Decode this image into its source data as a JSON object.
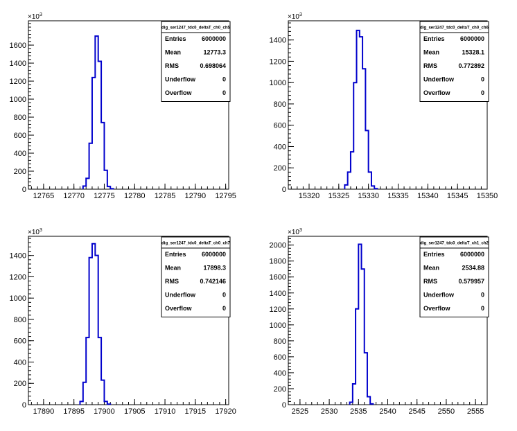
{
  "chart_data": [
    {
      "type": "histogram",
      "title": "dig_ser1247_tdc0_deltaT_ch0_ch5",
      "y_multiplier": "×10",
      "y_exponent": "3",
      "xlim": [
        12762.5,
        12795.5
      ],
      "ylim": [
        0,
        1870
      ],
      "x_ticks": [
        12765,
        12770,
        12775,
        12780,
        12785,
        12790,
        12795
      ],
      "x_tick_labels": [
        "12765",
        "12770",
        "12775",
        "12780",
        "12785",
        "12790",
        "12795"
      ],
      "x_minor_step": 1,
      "y_ticks": [
        0,
        200,
        400,
        600,
        800,
        1000,
        1200,
        1400,
        1600
      ],
      "y_tick_labels": [
        "0",
        "200",
        "400",
        "600",
        "800",
        "1000",
        "1200",
        "1400",
        "1600"
      ],
      "y_minor_step": 40,
      "bin_width": 0.5,
      "bins_start": 12771.5,
      "counts": [
        35,
        120,
        510,
        1240,
        1700,
        1420,
        740,
        210,
        30,
        5
      ],
      "stats": [
        {
          "label": "Entries",
          "value": "6000000"
        },
        {
          "label": "Mean",
          "value": "12773.3"
        },
        {
          "label": "RMS",
          "value": "0.698064"
        },
        {
          "label": "Underflow",
          "value": "0"
        },
        {
          "label": "Overflow",
          "value": "0"
        }
      ]
    },
    {
      "type": "histogram",
      "title": "dig_ser1247_tdc0_deltaT_ch0_ch6",
      "y_multiplier": "×10",
      "y_exponent": "3",
      "xlim": [
        15316.5,
        15350
      ],
      "ylim": [
        0,
        1580
      ],
      "x_ticks": [
        15320,
        15325,
        15330,
        15335,
        15340,
        15345,
        15350
      ],
      "x_tick_labels": [
        "15320",
        "15325",
        "15330",
        "15335",
        "15340",
        "15345",
        "15350"
      ],
      "x_minor_step": 1,
      "y_ticks": [
        0,
        200,
        400,
        600,
        800,
        1000,
        1200,
        1400
      ],
      "y_tick_labels": [
        "0",
        "200",
        "400",
        "600",
        "800",
        "1000",
        "1200",
        "1400"
      ],
      "y_minor_step": 40,
      "bin_width": 0.5,
      "bins_start": 15326,
      "counts": [
        40,
        160,
        350,
        1000,
        1490,
        1430,
        1130,
        550,
        160,
        30,
        5
      ],
      "stats": [
        {
          "label": "Entries",
          "value": "6000000"
        },
        {
          "label": "Mean",
          "value": "15328.1"
        },
        {
          "label": "RMS",
          "value": "0.772892"
        },
        {
          "label": "Underflow",
          "value": "0"
        },
        {
          "label": "Overflow",
          "value": "0"
        }
      ]
    },
    {
      "type": "histogram",
      "title": "dig_ser1247_tdc0_deltaT_ch0_ch7",
      "y_multiplier": "×10",
      "y_exponent": "3",
      "xlim": [
        17887.5,
        17920.5
      ],
      "ylim": [
        0,
        1580
      ],
      "x_ticks": [
        17890,
        17895,
        17900,
        17905,
        17910,
        17915,
        17920
      ],
      "x_tick_labels": [
        "17890",
        "17895",
        "17900",
        "17905",
        "17910",
        "17915",
        "17920"
      ],
      "x_minor_step": 1,
      "y_ticks": [
        0,
        200,
        400,
        600,
        800,
        1000,
        1200,
        1400
      ],
      "y_tick_labels": [
        "0",
        "200",
        "400",
        "600",
        "800",
        "1000",
        "1200",
        "1400"
      ],
      "y_minor_step": 40,
      "bin_width": 0.5,
      "bins_start": 17896,
      "counts": [
        30,
        210,
        630,
        1380,
        1510,
        1400,
        630,
        230,
        30,
        5
      ],
      "stats": [
        {
          "label": "Entries",
          "value": "6000000"
        },
        {
          "label": "Mean",
          "value": "17898.3"
        },
        {
          "label": "RMS",
          "value": "0.742146"
        },
        {
          "label": "Underflow",
          "value": "0"
        },
        {
          "label": "Overflow",
          "value": "0"
        }
      ]
    },
    {
      "type": "histogram",
      "title": "dig_ser1247_tdc0_deltaT_ch1_ch2",
      "y_multiplier": "×10",
      "y_exponent": "3",
      "xlim": [
        2523,
        2557
      ],
      "ylim": [
        0,
        2110
      ],
      "x_ticks": [
        2525,
        2530,
        2535,
        2540,
        2545,
        2550,
        2555
      ],
      "x_tick_labels": [
        "2525",
        "2530",
        "2535",
        "2540",
        "2545",
        "2550",
        "2555"
      ],
      "x_minor_step": 1,
      "y_ticks": [
        0,
        200,
        400,
        600,
        800,
        1000,
        1200,
        1400,
        1600,
        1800,
        2000
      ],
      "y_tick_labels": [
        "0",
        "200",
        "400",
        "600",
        "800",
        "1000",
        "1200",
        "1400",
        "1600",
        "1800",
        "2000"
      ],
      "y_minor_step": 40,
      "bin_width": 0.5,
      "bins_start": 2533.5,
      "counts": [
        30,
        260,
        1200,
        2010,
        1700,
        650,
        100,
        10
      ],
      "stats": [
        {
          "label": "Entries",
          "value": "6000000"
        },
        {
          "label": "Mean",
          "value": "2534.88"
        },
        {
          "label": "RMS",
          "value": "0.579957"
        },
        {
          "label": "Underflow",
          "value": "0"
        },
        {
          "label": "Overflow",
          "value": "0"
        }
      ]
    }
  ],
  "colors": {
    "histogram_line": "#0000cc",
    "axis": "#000000",
    "background": "#ffffff"
  }
}
